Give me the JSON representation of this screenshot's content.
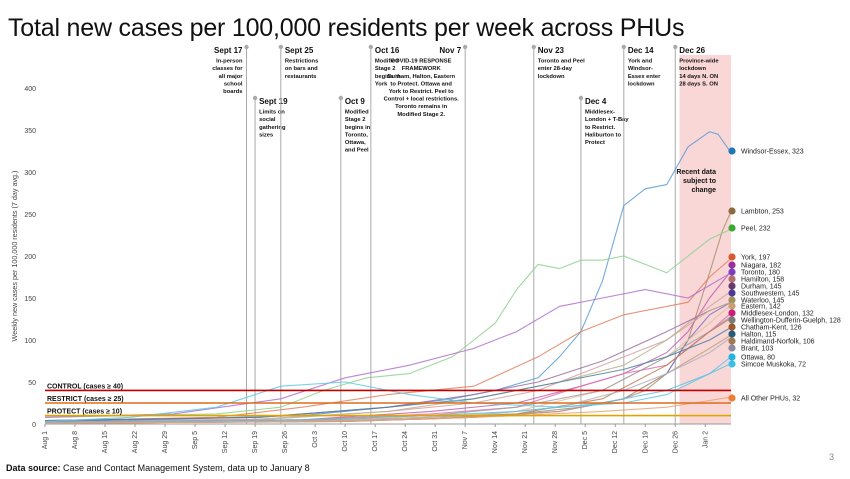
{
  "title": "Total new cases per 100,000 residents per week across PHUs",
  "footer": {
    "source_label": "Data source:",
    "source_text": " Case and Contact Management System, data up to January 8",
    "page_number": "3"
  },
  "colors": {
    "axis": "#999999",
    "text": "#111111",
    "grid": "#dddddd",
    "band": "#f7c9c9",
    "control": "#c00000",
    "restrict": "#e06c1a",
    "protect": "#e0a400",
    "other": "#bbbbbb"
  },
  "chart_data": {
    "type": "line",
    "title": "Total new cases per 100,000 residents per week across PHUs",
    "ylabel": "Weekly new cases per 100,000 residents (7 day avg.)",
    "xlabel": "",
    "ylim": [
      0,
      400
    ],
    "y_ticks": [
      0,
      50,
      100,
      150,
      200,
      250,
      300,
      350,
      400
    ],
    "x_ticks": [
      "Aug 1",
      "Aug 8",
      "Aug 15",
      "Aug 22",
      "Aug 29",
      "Sep 5",
      "Sep 12",
      "Sep 19",
      "Sep 26",
      "Oct 3",
      "Oct 10",
      "Oct 17",
      "Oct 24",
      "Oct 31",
      "Nov 7",
      "Nov 14",
      "Nov 21",
      "Nov 28",
      "Dec 5",
      "Dec 12",
      "Dec 19",
      "Dec 26",
      "Jan 2"
    ],
    "x_range_days": [
      0,
      160
    ],
    "grid": false,
    "threshold_lines": [
      {
        "label": "CONTROL (cases ≥ 40)",
        "value": 40,
        "color": "#c00000"
      },
      {
        "label": "RESTRICT (cases ≥ 25)",
        "value": 25,
        "color": "#e06c1a"
      },
      {
        "label": "PROTECT (cases ≥ 10)",
        "value": 10,
        "color": "#e0a400"
      }
    ],
    "shaded_region_label": "Recent data subject to change",
    "annotations": [
      {
        "date": "Sept 17",
        "day": 47,
        "lines": [
          "Sept 17",
          "In-person",
          "classes for",
          "all major",
          "school",
          "boards"
        ]
      },
      {
        "date": "Sept 19",
        "day": 49,
        "lines": [
          "Sept 19",
          "Limits on",
          "social",
          "gathering",
          "sizes"
        ]
      },
      {
        "date": "Sept 25",
        "day": 55,
        "lines": [
          "Sept 25",
          "Restrictions",
          "on bars and",
          "restaurants"
        ]
      },
      {
        "date": "Oct 9",
        "day": 69,
        "lines": [
          "Oct 9",
          "Modified",
          "Stage 2",
          "begins in",
          "Toronto,",
          "Ottawa,",
          "and Peel"
        ]
      },
      {
        "date": "Oct 16",
        "day": 76,
        "lines": [
          "Oct 16",
          "Modified",
          "Stage 2",
          "begins in",
          "York"
        ]
      },
      {
        "date": "Nov 7",
        "day": 98,
        "lines": [
          "Nov 7",
          "COVID-19 RESPONSE",
          "FRAMEWORK",
          "Durham, Halton, Eastern",
          "to Protect. Ottawa and",
          "York to Restrict. Peel to",
          "Control + local restrictions.",
          "Toronto remains in",
          "Modified Stage 2."
        ]
      },
      {
        "date": "Nov 23",
        "day": 114,
        "lines": [
          "Nov 23",
          "Toronto and Peel",
          "enter 28-day",
          "lockdown"
        ]
      },
      {
        "date": "Dec 4",
        "day": 125,
        "lines": [
          "Dec 4",
          "Middlesex-",
          "London + T-Bay",
          "to Restrict.",
          "Haliburton to",
          "Protect"
        ]
      },
      {
        "date": "Dec 14",
        "day": 135,
        "lines": [
          "Dec 14",
          "York and",
          "Windsor-",
          "Essex enter",
          "lockdown"
        ]
      },
      {
        "date": "Dec 26",
        "day": 147,
        "lines": [
          "Dec 26",
          "Province-wide",
          "lockdown",
          "14 days N. ON",
          "28 days S. ON"
        ]
      }
    ],
    "series": [
      {
        "name": "Windsor-Essex",
        "value": 323,
        "label": "Windsor-Essex, 323",
        "color": "#5a9bd5",
        "dot": "#1f77b4",
        "x": [
          0,
          30,
          60,
          80,
          95,
          105,
          115,
          120,
          125,
          130,
          135,
          140,
          145,
          150,
          155,
          157,
          160
        ],
        "y": [
          4,
          6,
          10,
          20,
          30,
          40,
          55,
          80,
          110,
          170,
          260,
          280,
          285,
          330,
          348,
          345,
          323
        ]
      },
      {
        "name": "Lambton",
        "value": 253,
        "label": "Lambton, 253",
        "color": "#a89070",
        "dot": "#8b6a3e",
        "x": [
          0,
          60,
          90,
          110,
          125,
          135,
          140,
          145,
          150,
          155,
          158,
          160
        ],
        "y": [
          2,
          4,
          8,
          12,
          20,
          30,
          40,
          60,
          100,
          180,
          230,
          253
        ]
      },
      {
        "name": "Peel",
        "value": 232,
        "label": "Peel, 232",
        "color": "#8fd18f",
        "dot": "#3aaa35",
        "x": [
          0,
          20,
          40,
          55,
          65,
          75,
          85,
          95,
          100,
          105,
          110,
          115,
          120,
          125,
          130,
          135,
          140,
          145,
          150,
          155,
          160
        ],
        "y": [
          8,
          10,
          12,
          20,
          40,
          55,
          60,
          80,
          100,
          120,
          160,
          190,
          185,
          195,
          195,
          200,
          190,
          180,
          200,
          220,
          232
        ]
      },
      {
        "name": "York",
        "value": 197,
        "label": "York, 197",
        "color": "#e08060",
        "dot": "#d55a30",
        "x": [
          0,
          40,
          60,
          80,
          100,
          115,
          125,
          135,
          145,
          150,
          155,
          160
        ],
        "y": [
          4,
          8,
          20,
          35,
          45,
          80,
          110,
          130,
          140,
          145,
          175,
          197
        ]
      },
      {
        "name": "Niagara",
        "value": 182,
        "label": "Niagara, 182",
        "color": "#c060b0",
        "dot": "#9b2f9a",
        "x": [
          0,
          60,
          90,
          110,
          125,
          135,
          145,
          150,
          155,
          160
        ],
        "y": [
          2,
          5,
          15,
          25,
          45,
          60,
          85,
          110,
          150,
          182
        ]
      },
      {
        "name": "Toronto",
        "value": 180,
        "label": "Toronto, 180",
        "color": "#b070d0",
        "dot": "#7b3fbf",
        "x": [
          0,
          30,
          55,
          70,
          85,
          100,
          110,
          120,
          130,
          140,
          150,
          155,
          160
        ],
        "y": [
          8,
          12,
          30,
          55,
          70,
          90,
          110,
          140,
          150,
          160,
          150,
          165,
          180
        ]
      },
      {
        "name": "Hamilton",
        "value": 158,
        "label": "Hamilton, 158",
        "color": "#d4a0a0",
        "dot": "#b07070",
        "x": [
          0,
          50,
          80,
          100,
          115,
          130,
          145,
          155,
          160
        ],
        "y": [
          3,
          6,
          15,
          25,
          40,
          70,
          100,
          140,
          158
        ]
      },
      {
        "name": "Durham",
        "value": 145,
        "label": "Durham, 145",
        "color": "#a070a0",
        "dot": "#6a3a6a",
        "x": [
          0,
          50,
          80,
          100,
          115,
          130,
          145,
          155,
          160
        ],
        "y": [
          3,
          8,
          20,
          35,
          50,
          75,
          110,
          135,
          145
        ]
      },
      {
        "name": "Southwestern",
        "value": 145,
        "label": "Southwestern, 145",
        "color": "#8070c0",
        "dot": "#4a3a9a",
        "x": [
          0,
          70,
          100,
          120,
          135,
          145,
          150,
          155,
          160
        ],
        "y": [
          1,
          3,
          8,
          15,
          30,
          60,
          100,
          130,
          145
        ]
      },
      {
        "name": "Waterloo",
        "value": 145,
        "label": "Waterloo, 145",
        "color": "#c0b090",
        "dot": "#a09060",
        "x": [
          0,
          50,
          80,
          100,
          120,
          135,
          145,
          155,
          160
        ],
        "y": [
          2,
          5,
          15,
          30,
          50,
          70,
          100,
          135,
          145
        ]
      },
      {
        "name": "Eastern",
        "value": 142,
        "label": "Eastern, 142",
        "color": "#e0c0a0",
        "dot": "#c8a070",
        "x": [
          0,
          60,
          90,
          110,
          130,
          145,
          155,
          160
        ],
        "y": [
          1,
          3,
          8,
          15,
          40,
          80,
          120,
          142
        ]
      },
      {
        "name": "Middlesex-London",
        "value": 132,
        "label": "Middlesex-London, 132",
        "color": "#e070b0",
        "dot": "#cc1f7a",
        "x": [
          0,
          60,
          90,
          110,
          125,
          135,
          145,
          155,
          160
        ],
        "y": [
          2,
          5,
          12,
          20,
          45,
          60,
          70,
          110,
          132
        ]
      },
      {
        "name": "Wellington-Dufferin-Guelph",
        "value": 128,
        "label": "Wellington-Dufferin-Guelph, 128",
        "color": "#a0a0a0",
        "dot": "#7a7a7a",
        "x": [
          0,
          60,
          90,
          110,
          130,
          145,
          155,
          160
        ],
        "y": [
          2,
          5,
          10,
          20,
          40,
          80,
          110,
          128
        ]
      },
      {
        "name": "Chatham-Kent",
        "value": 126,
        "label": "Chatham-Kent, 126",
        "color": "#c08050",
        "dot": "#9a5a2a",
        "x": [
          0,
          60,
          90,
          110,
          130,
          145,
          155,
          160
        ],
        "y": [
          1,
          3,
          6,
          12,
          30,
          70,
          110,
          126
        ]
      },
      {
        "name": "Halton",
        "value": 115,
        "label": "Halton, 115",
        "color": "#5080a0",
        "dot": "#2a5a7a",
        "x": [
          0,
          50,
          80,
          100,
          120,
          135,
          145,
          155,
          160
        ],
        "y": [
          4,
          8,
          20,
          30,
          50,
          65,
          80,
          100,
          115
        ]
      },
      {
        "name": "Haldimand-Norfolk",
        "value": 106,
        "label": "Haldimand-Norfolk, 106",
        "color": "#c0a080",
        "dot": "#a07a50",
        "x": [
          0,
          70,
          100,
          120,
          135,
          145,
          155,
          160
        ],
        "y": [
          1,
          3,
          8,
          15,
          30,
          60,
          90,
          106
        ]
      },
      {
        "name": "Brant",
        "value": 103,
        "label": "Brant, 103",
        "color": "#b0b0c0",
        "dot": "#8a8aa0",
        "x": [
          0,
          70,
          100,
          120,
          135,
          145,
          155,
          160
        ],
        "y": [
          1,
          4,
          10,
          20,
          40,
          60,
          85,
          103
        ]
      },
      {
        "name": "Ottawa",
        "value": 80,
        "label": "Ottawa, 80",
        "color": "#60c8e8",
        "dot": "#22b5e0",
        "x": [
          0,
          20,
          40,
          55,
          70,
          85,
          100,
          120,
          135,
          145,
          155,
          160
        ],
        "y": [
          3,
          8,
          20,
          45,
          50,
          35,
          25,
          20,
          25,
          35,
          60,
          80
        ]
      },
      {
        "name": "Simcoe Muskoka",
        "value": 72,
        "label": "Simcoe Muskoka, 72",
        "color": "#60c0e0",
        "dot": "#3ac0e8",
        "x": [
          0,
          60,
          90,
          110,
          130,
          145,
          155,
          160
        ],
        "y": [
          2,
          5,
          10,
          15,
          25,
          40,
          60,
          72
        ]
      },
      {
        "name": "All Other PHUs",
        "value": 32,
        "label": "All Other PHUs, 32",
        "color": "#f0a070",
        "dot": "#ee7d31",
        "x": [
          0,
          60,
          90,
          110,
          130,
          145,
          155,
          160
        ],
        "y": [
          1,
          3,
          6,
          10,
          15,
          20,
          28,
          32
        ]
      }
    ]
  }
}
